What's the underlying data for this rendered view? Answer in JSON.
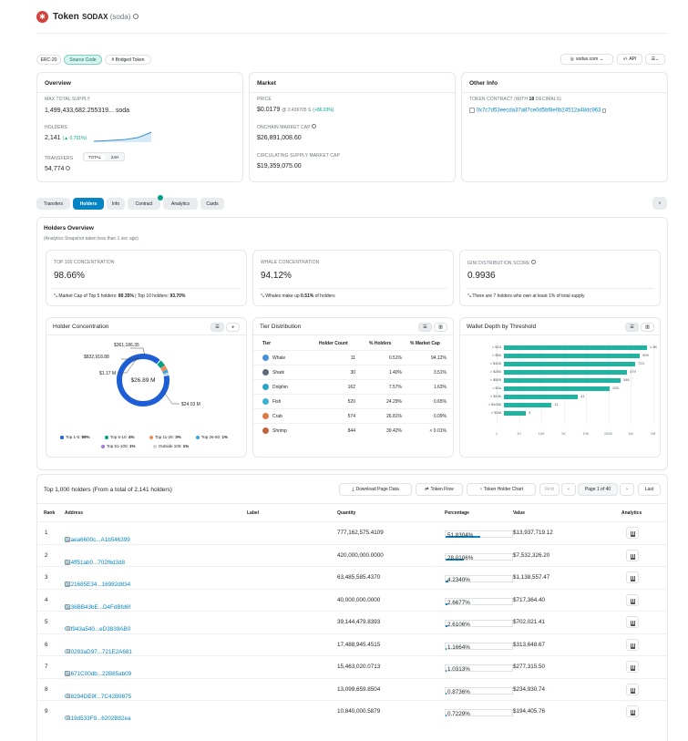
{
  "header": {
    "title": "Token",
    "token_name": "SODAX",
    "token_symbol": "(soda)"
  },
  "badges": [
    "ERC-20",
    "Source Code",
    "# Bridged Token"
  ],
  "top_actions": {
    "site": "sodax.com",
    "api": "API"
  },
  "overview": {
    "title": "Overview",
    "max_supply_label": "MAX TOTAL SUPPLY",
    "max_supply": "1,499,433,682.255319...",
    "max_supply_unit": "soda",
    "holders_label": "HOLDERS",
    "holders": "2,141",
    "holders_change": "(▲ 0.701%)",
    "transfers_label": "TRANSFERS",
    "tab_total": "TOTAL",
    "tab_24h": "24H",
    "transfers": "54,774"
  },
  "market": {
    "title": "Market",
    "price_label": "PRICE",
    "price": "$0.0179",
    "price_eth": "@ 0.436705 S",
    "price_change": "(+86.03%)",
    "mcap_label": "ONCHAIN MARKET CAP",
    "mcap": "$26,891,008.60",
    "circ_label": "CIRCULATING SUPPLY MARKET CAP",
    "circ": "$19,359,075.00"
  },
  "other": {
    "title": "Other Info",
    "contract_label_pre": "TOKEN CONTRACT (WITH",
    "decimals": "18",
    "contract_label_post": "DECIMALS)",
    "contract": "0x7c7d53eecda37a87ce0d5bf8e0b24512a48dc963"
  },
  "tabs": [
    "Transfers",
    "Holders",
    "Info",
    "Contract",
    "Analytics",
    "Cards"
  ],
  "holders_overview": {
    "title": "Holders Overview",
    "subtitle": "(Analytics Snapshot taken less than 1 sec ago)",
    "top100_label": "TOP 100 CONCENTRATION",
    "top100": "98.66%",
    "top100_note_pre": "Market Cap of Top 5 holders:",
    "top5": "89.35%",
    "top100_note_mid": "| Top 10 holders:",
    "top10": "93.70%",
    "whale_label": "WHALE CONCENTRATION",
    "whale": "94.12%",
    "whale_note_pre": "Whales make up",
    "whale_pct": "0.51%",
    "whale_note_post": "of holders",
    "gini_label": "GINI DISTRIBUTION SCORE",
    "gini": "0.9936",
    "gini_note": "There are 7 holders who own at least 1% of total supply"
  },
  "concentration": {
    "title": "Holder Concentration",
    "center": "$26.89 M",
    "callouts": [
      "$361,186.35",
      "$832,918.88",
      "$1.17 M",
      "$24.03 M"
    ],
    "legend": [
      {
        "label": "Top 1-5:",
        "pct": "89%",
        "color": "#1f5fd6"
      },
      {
        "label": "Top 6-10:",
        "pct": "4%",
        "color": "#00a186"
      },
      {
        "label": "Top 11-25:",
        "pct": "3%",
        "color": "#f08c5a"
      },
      {
        "label": "Top 26-50:",
        "pct": "1%",
        "color": "#34a7e0"
      },
      {
        "label": "Top 51-100:",
        "pct": "1%",
        "color": "#a57be0"
      },
      {
        "label": "Outside 100:",
        "pct": "1%",
        "color": "#cfd4da"
      }
    ]
  },
  "tiers": {
    "title": "Tier Distribution",
    "headers": [
      "Tier",
      "Holder Count",
      "% Holders",
      "% Market Cap"
    ],
    "rows": [
      {
        "tier": "Whale",
        "count": "11",
        "holders": "0.51%",
        "mcap": "94.12%"
      },
      {
        "tier": "Shark",
        "count": "30",
        "holders": "1.40%",
        "mcap": "3.51%"
      },
      {
        "tier": "Dolphin",
        "count": "162",
        "holders": "7.57%",
        "mcap": "1.63%"
      },
      {
        "tier": "Fish",
        "count": "520",
        "holders": "24.29%",
        "mcap": "0.65%"
      },
      {
        "tier": "Crab",
        "count": "574",
        "holders": "26.81%",
        "mcap": "0.09%"
      },
      {
        "tier": "Shrimp",
        "count": "844",
        "holders": "39.42%",
        "mcap": "< 0.01%"
      }
    ]
  },
  "wallet_depth": {
    "title": "Wallet Depth by Threshold",
    "chart_data": {
      "type": "bar",
      "orientation": "horizontal",
      "categories": [
        "> $10",
        "> $50",
        "> $100",
        "> $250",
        "> $500",
        "> $1k",
        "> $10k",
        "> $100k",
        "> $1M"
      ],
      "values": [
        1300,
        909,
        723,
        479,
        346,
        203,
        41,
        11,
        3
      ],
      "value_labels": [
        "1.3K",
        "909",
        "723",
        "479",
        "346",
        "203",
        "41",
        "11",
        "3"
      ],
      "x_ticks": [
        "1",
        "10",
        "100",
        "1K",
        "10K",
        "100K",
        "1M",
        "1M"
      ],
      "x_scale": "log",
      "xlim": [
        1,
        1500
      ]
    }
  },
  "holders_table": {
    "title": "Top 1,000 holders (From a total of 2,141 holders)",
    "btn_download": "Download Page Data",
    "btn_flow": "Token Flow",
    "btn_chart": "Token Holder Chart",
    "btn_first": "First",
    "page": "Page 1 of 40",
    "btn_last": "Last",
    "headers": [
      "Rank",
      "Address",
      "Label",
      "Quantity",
      "Percentage",
      "Value",
      "Analytics"
    ],
    "rows": [
      {
        "rank": "1",
        "address": "0xaea6600c...A1b546399",
        "contract": true,
        "quantity": "777,162,575.4109",
        "pct": "51.8304%",
        "pct_v": 51.83,
        "value": "$13,937,719.12"
      },
      {
        "rank": "2",
        "address": "0x4ff51ab0...702f6d3d8",
        "contract": true,
        "quantity": "420,000,000.0000",
        "pct": "28.0106%",
        "pct_v": 28.01,
        "value": "$7,532,326.20"
      },
      {
        "rank": "3",
        "address": "0x21685E34...16982d834",
        "contract": true,
        "quantity": "63,485,585.4370",
        "pct": "4.2340%",
        "pct_v": 4.23,
        "value": "$1,138,557.47"
      },
      {
        "rank": "4",
        "address": "0x36BB43bE...D4FdBfd6f",
        "contract": true,
        "quantity": "40,000,000.0000",
        "pct": "2.6677%",
        "pct_v": 2.67,
        "value": "$717,364.40"
      },
      {
        "rank": "5",
        "address": "0xf943a540...eD3839AB0",
        "contract": false,
        "quantity": "39,144,479.8393",
        "pct": "2.6106%",
        "pct_v": 2.61,
        "value": "$702,021.41"
      },
      {
        "rank": "6",
        "address": "0x0293aD97...721E2A681",
        "contract": false,
        "quantity": "17,488,945.4515",
        "pct": "1.1664%",
        "pct_v": 1.17,
        "value": "$313,648.67"
      },
      {
        "rank": "7",
        "address": "0x671C00db...22B85ab09",
        "contract": true,
        "quantity": "15,463,020.0713",
        "pct": "1.0313%",
        "pct_v": 1.03,
        "value": "$277,315.50"
      },
      {
        "rank": "8",
        "address": "0x8294DE9f...7C42B9875",
        "contract": false,
        "quantity": "13,099,659.8504",
        "pct": "0.8736%",
        "pct_v": 0.87,
        "value": "$234,930.74"
      },
      {
        "rank": "9",
        "address": "0x19d533F9...6202B82ea",
        "contract": false,
        "quantity": "10,840,000.5879",
        "pct": "0.7229%",
        "pct_v": 0.72,
        "value": "$194,405.76"
      }
    ]
  }
}
